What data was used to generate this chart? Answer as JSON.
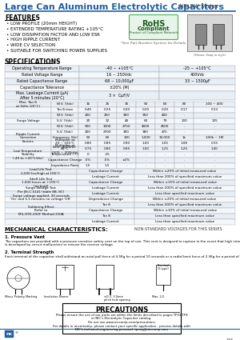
{
  "title": "Large Can Aluminum Electrolytic Capacitors",
  "series": "NRLFW Series",
  "features_title": "FEATURES",
  "features": [
    "LOW PROFILE (20mm HEIGHT)",
    "EXTENDED TEMPERATURE RATING +105°C",
    "LOW DISSIPATION FACTOR AND LOW ESR",
    "HIGH RIPPLE CURRENT",
    "WIDE CV SELECTION",
    "SUITABLE FOR SWITCHING POWER SUPPLIES"
  ],
  "rohs_sub": "*See Part Number System for Details",
  "specs_title": "SPECIFICATIONS",
  "mech_title": "MECHANICAL CHARACTERISTICS:",
  "mech_note": "NON-STANDARD VOLTAGES FOR THIS SERIES",
  "mech_1_title": "1. Pressure Vent",
  "mech_1_text": "The capacitors are provided with a pressure sensitive safety vent on the top of can. This vent is designed to rupture in the event that high internal gas pressure\nis developed by circuit malfunction or misuse the reverse voltage.",
  "mech_2_title": "2. Terminal Strength",
  "mech_2_text": "Each terminal of the capacitor shall withstand an axial pull force of 4.5Kg for a period 10 seconds or a radial bent force of 2.5Kg for a period of 30 seconds.",
  "precautions_title": "PRECAUTIONS",
  "precautions_text": "Please ensure the use of our parts are within the limits described in pages TF01-TF8\nor NIC's Electrolytic Capacitor catalog.\nDo not use www.niccomp.com/precautions.\nFor details in uncertainty, please contact your specific application - process details with\nNIC's technical engineering personal. tpeng@niccomp.com",
  "company_logo": "nc",
  "company": "NIC COMPONENTS CORP.",
  "websites": "www.niccomp.com  |  www.keElEct.com  |  www.NiPassives.com I  www.SRFmagnetics.com",
  "page": "165",
  "bg_color": "#ffffff",
  "title_blue": "#2060a0",
  "header_line_color": "#2060a0",
  "text_color": "#000000",
  "table_bg1": "#e8eef5",
  "table_bg2": "#f4f7fb",
  "table_border": "#aaaaaa"
}
